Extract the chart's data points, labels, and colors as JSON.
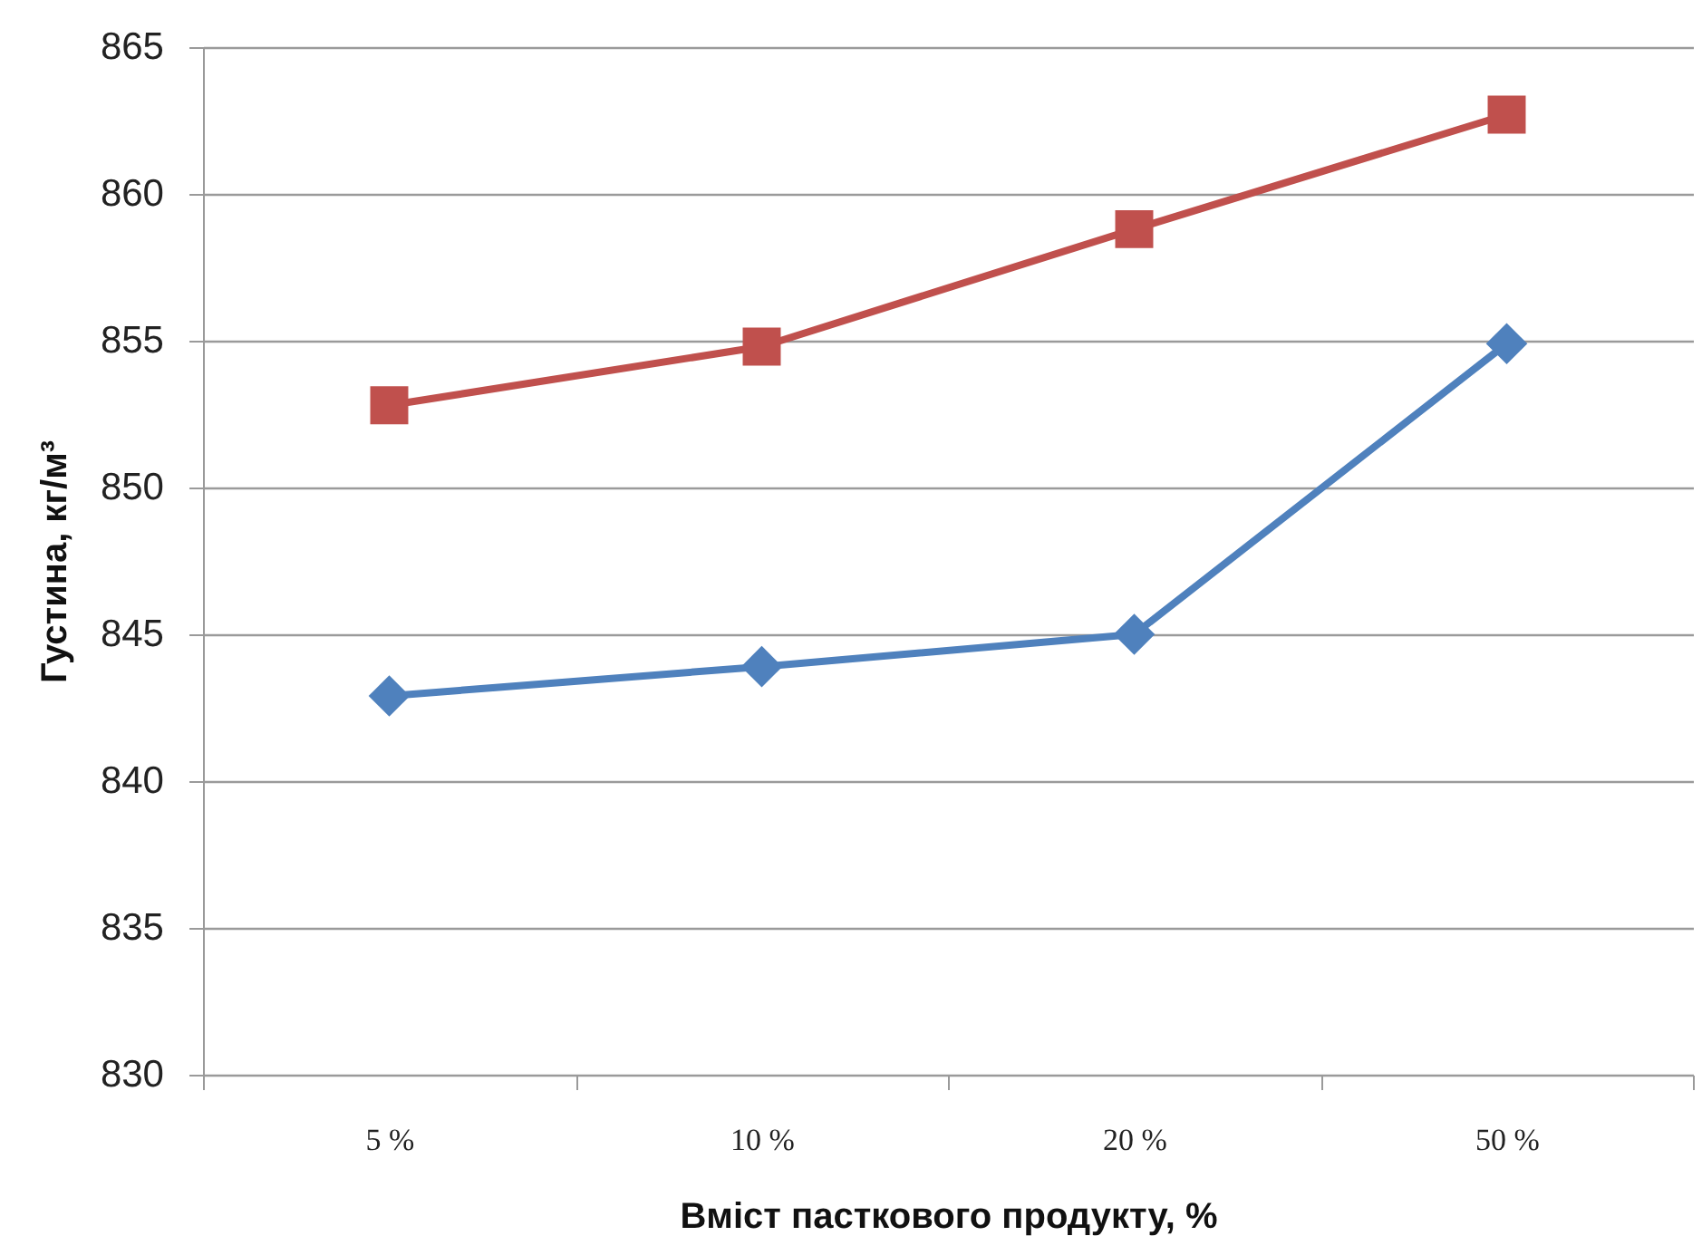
{
  "chart_data": {
    "type": "line",
    "xlabel": "Вміст пасткового продукту, %",
    "ylabel": "Густина, кг/м³",
    "categories": [
      "5 %",
      "10 %",
      "20 %",
      "50 %"
    ],
    "series": [
      {
        "color": "#4f81bd",
        "marker": "diamond",
        "values": [
          842.9,
          843.9,
          845.0,
          854.9
        ]
      },
      {
        "color": "#c0504d",
        "marker": "square",
        "values": [
          852.8,
          854.8,
          858.8,
          862.7
        ]
      }
    ],
    "ylim": [
      830,
      865
    ],
    "yticks": [
      830,
      835,
      840,
      845,
      850,
      855,
      860,
      865
    ],
    "grid": "y"
  }
}
